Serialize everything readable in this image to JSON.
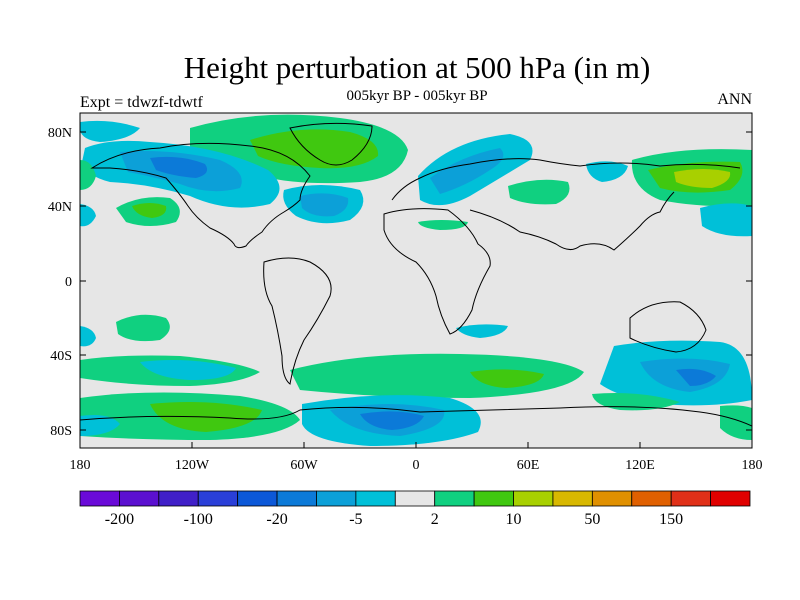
{
  "header": {
    "title": "Height perturbation at 500 hPa (in m)",
    "subtitle": "005kyr BP - 005kyr BP",
    "left_label": "Expt = tdwzf-tdwtf",
    "right_label": "ANN"
  },
  "chart_data": {
    "type": "filled-contour-map",
    "variable": "500 hPa geopotential height perturbation",
    "units": "m",
    "projection": "cylindrical equidistant",
    "lon_range": [
      -180,
      180
    ],
    "lat_range": [
      -90,
      90
    ],
    "x_ticks": [
      "180",
      "120W",
      "60W",
      "0",
      "60E",
      "120E",
      "180"
    ],
    "y_ticks": [
      "80N",
      "40N",
      "0",
      "40S",
      "80S"
    ],
    "colorbar": {
      "levels": [
        -200,
        -150,
        -100,
        -50,
        -20,
        -10,
        -5,
        -2,
        2,
        5,
        10,
        20,
        50,
        100,
        150,
        200
      ],
      "labels": [
        "-200",
        "-100",
        "-20",
        "-5",
        "2",
        "10",
        "50",
        "150"
      ],
      "colors": [
        "#6a0ad8",
        "#5b10d0",
        "#4020c8",
        "#2a3fd8",
        "#0c58d8",
        "#0c7ad8",
        "#0ca0d8",
        "#00c0d8",
        "#e6e6e6",
        "#10d080",
        "#40c810",
        "#a8d000",
        "#d8b800",
        "#e09000",
        "#e06000",
        "#e03018",
        "#e00000"
      ]
    },
    "background_color": "#e6e6e6"
  }
}
